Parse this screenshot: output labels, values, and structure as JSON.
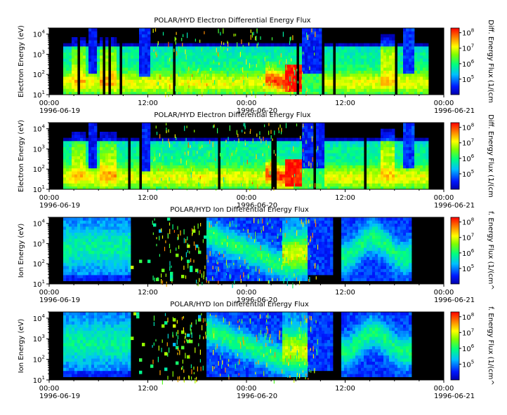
{
  "figure": {
    "cbar_ticks": [
      {
        "base": "10",
        "exp": "8"
      },
      {
        "base": "10",
        "exp": "7"
      },
      {
        "base": "10",
        "exp": "6"
      },
      {
        "base": "10",
        "exp": "5"
      }
    ]
  },
  "chart_data": [
    {
      "type": "heatmap",
      "title": "POLAR/HYD  Electron Differential Energy Flux",
      "ylabel": "Electron Energy (eV)",
      "cbar_label": "Diff. Energy Flux (1/(cm",
      "xticks": [
        {
          "time": "00:00",
          "date": "1996-06-19"
        },
        {
          "time": "12:00",
          "date": ""
        },
        {
          "time": "00:00",
          "date": "1996-06-20"
        },
        {
          "time": "12:00",
          "date": ""
        },
        {
          "time": "00:00",
          "date": "1996-06-21"
        }
      ],
      "yticks": [
        {
          "base": "10",
          "exp": "1"
        },
        {
          "base": "10",
          "exp": "2"
        },
        {
          "base": "10",
          "exp": "3"
        },
        {
          "base": "10",
          "exp": "4"
        }
      ],
      "ylim": [
        10,
        20000
      ],
      "xlim": [
        "1996-06-19 00:00",
        "1996-06-21 00:00"
      ],
      "yscale": "log",
      "colorbar_range": [
        10000,
        200000000
      ],
      "colorbar_scale": "log",
      "species": "electron"
    },
    {
      "type": "heatmap",
      "title": "POLAR/HYD  Electron Differential Energy Flux",
      "ylabel": "Electron Energy (eV)",
      "cbar_label": "Diff. Energy Flux (1/(cm",
      "xticks": [
        {
          "time": "00:00",
          "date": "1996-06-19"
        },
        {
          "time": "12:00",
          "date": ""
        },
        {
          "time": "00:00",
          "date": "1996-06-20"
        },
        {
          "time": "12:00",
          "date": ""
        },
        {
          "time": "00:00",
          "date": "1996-06-21"
        }
      ],
      "yticks": [
        {
          "base": "10",
          "exp": "1"
        },
        {
          "base": "10",
          "exp": "2"
        },
        {
          "base": "10",
          "exp": "3"
        },
        {
          "base": "10",
          "exp": "4"
        }
      ],
      "ylim": [
        10,
        20000
      ],
      "xlim": [
        "1996-06-19 00:00",
        "1996-06-21 00:00"
      ],
      "yscale": "log",
      "colorbar_range": [
        10000,
        200000000
      ],
      "colorbar_scale": "log",
      "species": "electron"
    },
    {
      "type": "heatmap",
      "title": "POLAR/HYD  Ion Differential Energy Flux",
      "ylabel": "Ion Energy (eV)",
      "cbar_label": "f. Energy Flux (1/(cm^",
      "xticks": [
        {
          "time": "00:00",
          "date": "1996-06-19"
        },
        {
          "time": "12:00",
          "date": ""
        },
        {
          "time": "00:00",
          "date": "1996-06-20"
        },
        {
          "time": "12:00",
          "date": ""
        },
        {
          "time": "00:00",
          "date": "1996-06-21"
        }
      ],
      "yticks": [
        {
          "base": "10",
          "exp": "1"
        },
        {
          "base": "10",
          "exp": "2"
        },
        {
          "base": "10",
          "exp": "3"
        },
        {
          "base": "10",
          "exp": "4"
        }
      ],
      "ylim": [
        10,
        20000
      ],
      "xlim": [
        "1996-06-19 00:00",
        "1996-06-21 00:00"
      ],
      "yscale": "log",
      "colorbar_range": [
        10000,
        200000000
      ],
      "colorbar_scale": "log",
      "species": "ion"
    },
    {
      "type": "heatmap",
      "title": "POLAR/HYD  Ion Differential Energy Flux",
      "ylabel": "Ion Energy (eV)",
      "cbar_label": "f. Energy Flux (1/(cm^",
      "xticks": [
        {
          "time": "00:00",
          "date": "1996-06-19"
        },
        {
          "time": "12:00",
          "date": ""
        },
        {
          "time": "00:00",
          "date": "1996-06-20"
        },
        {
          "time": "12:00",
          "date": ""
        },
        {
          "time": "00:00",
          "date": "1996-06-21"
        }
      ],
      "yticks": [
        {
          "base": "10",
          "exp": "1"
        },
        {
          "base": "10",
          "exp": "2"
        },
        {
          "base": "10",
          "exp": "3"
        },
        {
          "base": "10",
          "exp": "4"
        }
      ],
      "ylim": [
        10,
        20000
      ],
      "xlim": [
        "1996-06-19 00:00",
        "1996-06-21 00:00"
      ],
      "yscale": "log",
      "colorbar_range": [
        10000,
        200000000
      ],
      "colorbar_scale": "log",
      "species": "ion"
    }
  ]
}
